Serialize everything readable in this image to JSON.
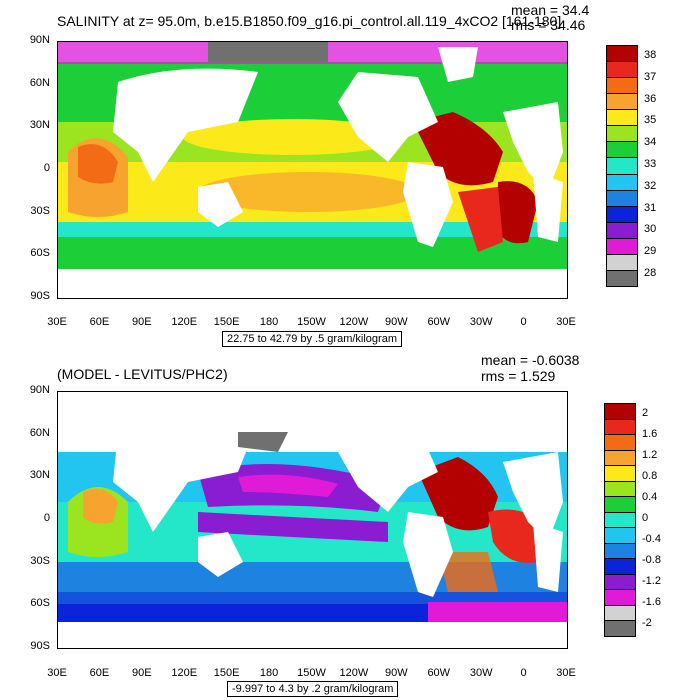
{
  "top_panel": {
    "title": "SALINITY at z=  95.0m, b.e15.B1850.f09_g16.pi_control.all.119_4xCO2 [161-180]",
    "mean": "mean = 34.4",
    "rms": "rms = 34.46",
    "caption": "22.75 to 42.79 by .5 gram/kilogram",
    "lat_labels": [
      "90N",
      "60N",
      "30N",
      "0",
      "30S",
      "60S",
      "90S"
    ],
    "lon_labels": [
      "30E",
      "60E",
      "90E",
      "120E",
      "150E",
      "180",
      "150W",
      "120W",
      "90W",
      "60W",
      "30W",
      "0",
      "30E"
    ],
    "colorbar": {
      "labels": [
        "38",
        "37",
        "36",
        "35",
        "34",
        "33",
        "32",
        "31",
        "30",
        "29",
        "28"
      ],
      "colors": [
        "#b30000",
        "#e8281c",
        "#f36b14",
        "#f7a330",
        "#fbe91a",
        "#9ae51f",
        "#1ccf38",
        "#24e6c8",
        "#22c4f0",
        "#1d82e0",
        "#0b24d9",
        "#8a1cd1",
        "#e01ad6",
        "#d2d2d2",
        "#707070"
      ]
    }
  },
  "bottom_panel": {
    "title": "(MODEL - LEVITUS/PHC2)",
    "mean": "mean = -0.6038",
    "rms": "rms = 1.529",
    "caption": "-9.997 to 4.3 by .2 gram/kilogram",
    "lat_labels": [
      "90N",
      "60N",
      "30N",
      "0",
      "30S",
      "60S",
      "90S"
    ],
    "lon_labels": [
      "30E",
      "60E",
      "90E",
      "120E",
      "150E",
      "180",
      "150W",
      "120W",
      "90W",
      "60W",
      "30W",
      "0",
      "30E"
    ],
    "colorbar": {
      "labels": [
        "2",
        "1.6",
        "1.2",
        "0.8",
        "0.4",
        "0",
        "-0.4",
        "-0.8",
        "-1.2",
        "-1.6",
        "-2"
      ],
      "colors": [
        "#b30000",
        "#e8281c",
        "#f36b14",
        "#f7a330",
        "#fbe91a",
        "#9ae51f",
        "#1ccf38",
        "#24e6c8",
        "#22c4f0",
        "#1d82e0",
        "#0b24d9",
        "#8a1cd1",
        "#e01ad6",
        "#d2d2d2",
        "#707070"
      ]
    }
  }
}
